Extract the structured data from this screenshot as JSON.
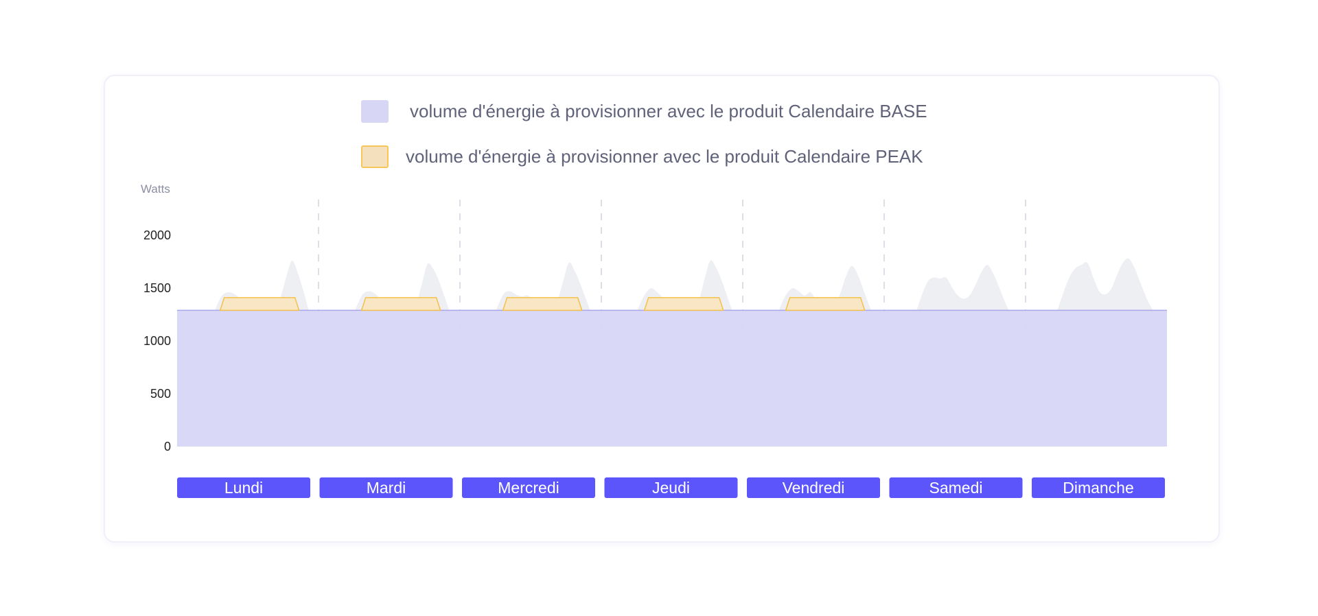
{
  "legend": {
    "base_label": "volume d'énergie à provisionner avec le produit Calendaire BASE",
    "peak_label": "volume d'énergie à provisionner avec le produit Calendaire PEAK"
  },
  "colors": {
    "base_fill": "#d7d6f5",
    "base_line": "#a9a6ee",
    "consumption_fill": "#eeeff3",
    "peak_fill": "#f9e6c4",
    "peak_stroke": "#f5c04a",
    "day_button": "#5b55fb",
    "grid_dash": "#dcdde6"
  },
  "chart_data": {
    "type": "area",
    "ylabel": "Watts",
    "ylim": [
      0,
      2000
    ],
    "yticks": [
      0,
      500,
      1000,
      1500,
      2000
    ],
    "categories": [
      "Lundi",
      "Mardi",
      "Mercredi",
      "Jeudi",
      "Vendredi",
      "Samedi",
      "Dimanche"
    ],
    "base_level": 1290,
    "peak_level": 1410,
    "peak_days": [
      "Lundi",
      "Mardi",
      "Mercredi",
      "Jeudi",
      "Vendredi"
    ],
    "peak_hours": [
      8,
      20
    ],
    "x_hours": [
      0,
      1,
      2,
      3,
      4,
      5,
      6,
      7,
      8,
      9,
      10,
      11,
      12,
      13,
      14,
      15,
      16,
      17,
      18,
      19,
      20,
      21,
      22,
      23
    ],
    "series": [
      {
        "values": [
          [
            950,
            930,
            920,
            930,
            1000,
            1150,
            1300,
            1420,
            1460,
            1450,
            1410,
            1360,
            1330,
            1290,
            1250,
            1220,
            1260,
            1400,
            1600,
            1760,
            1640,
            1460,
            1260,
            1110
          ],
          [
            1030,
            1000,
            985,
            995,
            1060,
            1190,
            1330,
            1440,
            1470,
            1450,
            1400,
            1350,
            1310,
            1270,
            1240,
            1250,
            1330,
            1530,
            1730,
            1680,
            1560,
            1400,
            1240,
            1110
          ],
          [
            1030,
            1000,
            985,
            995,
            1060,
            1190,
            1340,
            1450,
            1470,
            1440,
            1420,
            1430,
            1380,
            1290,
            1250,
            1270,
            1370,
            1560,
            1740,
            1660,
            1530,
            1380,
            1230,
            1100
          ],
          [
            1030,
            1000,
            985,
            995,
            1060,
            1190,
            1340,
            1450,
            1500,
            1460,
            1410,
            1400,
            1330,
            1250,
            1230,
            1260,
            1370,
            1580,
            1760,
            1690,
            1560,
            1400,
            1240,
            1110
          ],
          [
            1030,
            1000,
            985,
            995,
            1060,
            1190,
            1340,
            1450,
            1500,
            1470,
            1430,
            1460,
            1380,
            1300,
            1280,
            1330,
            1440,
            1610,
            1710,
            1630,
            1480,
            1330,
            1200,
            1130
          ],
          [
            1100,
            1080,
            1070,
            1080,
            1140,
            1290,
            1450,
            1570,
            1600,
            1590,
            1600,
            1510,
            1430,
            1400,
            1430,
            1530,
            1650,
            1720,
            1640,
            1510,
            1370,
            1250,
            1160,
            1110
          ],
          [
            1120,
            1100,
            1090,
            1100,
            1160,
            1310,
            1470,
            1610,
            1690,
            1720,
            1740,
            1600,
            1470,
            1440,
            1490,
            1620,
            1740,
            1780,
            1690,
            1550,
            1410,
            1300,
            1200,
            1150
          ]
        ]
      }
    ]
  }
}
